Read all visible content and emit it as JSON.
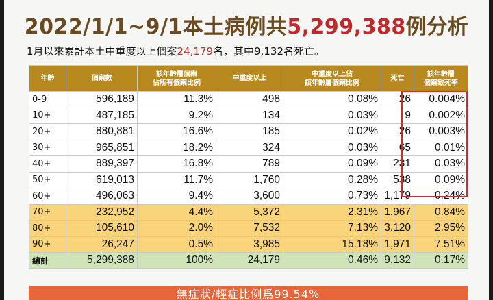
{
  "title": {
    "pre": "2022/1/1~9/1本土病例共",
    "number": "5,299,388",
    "post": "例分析"
  },
  "subtitle": {
    "pre": "1月以來累計本土中重度以上個案",
    "number": "24,179",
    "post": "名，其中9,132名死亡。"
  },
  "table": {
    "headers": {
      "age": "年齡",
      "cases": "個案數",
      "case_share": [
        "該年齡層個案",
        "佔所有個案比例"
      ],
      "severe": "中重度以上",
      "severe_share": [
        "中重度以上佔",
        "該年齡層個案比例"
      ],
      "deaths": "死亡",
      "fatality": [
        "該年齡層",
        "個案致死率"
      ]
    },
    "rows": [
      {
        "age": "0-9",
        "cases": "596,189",
        "share": "11.3%",
        "severe": "498",
        "severe_pct": "0.08%",
        "deaths": "26",
        "fatality": "0.004%"
      },
      {
        "age": "10+",
        "cases": "487,185",
        "share": "9.2%",
        "severe": "134",
        "severe_pct": "0.03%",
        "deaths": "9",
        "fatality": "0.002%"
      },
      {
        "age": "20+",
        "cases": "880,881",
        "share": "16.6%",
        "severe": "185",
        "severe_pct": "0.02%",
        "deaths": "26",
        "fatality": "0.003%"
      },
      {
        "age": "30+",
        "cases": "965,851",
        "share": "18.2%",
        "severe": "324",
        "severe_pct": "0.03%",
        "deaths": "65",
        "fatality": "0.01%"
      },
      {
        "age": "40+",
        "cases": "889,397",
        "share": "16.8%",
        "severe": "789",
        "severe_pct": "0.09%",
        "deaths": "231",
        "fatality": "0.03%"
      },
      {
        "age": "50+",
        "cases": "619,013",
        "share": "11.7%",
        "severe": "1,760",
        "severe_pct": "0.28%",
        "deaths": "538",
        "fatality": "0.09%"
      },
      {
        "age": "60+",
        "cases": "496,063",
        "share": "9.4%",
        "severe": "3,600",
        "severe_pct": "0.73%",
        "deaths": "1,179",
        "fatality": "0.24%"
      },
      {
        "age": "70+",
        "cases": "232,952",
        "share": "4.4%",
        "severe": "5,372",
        "severe_pct": "2.31%",
        "deaths": "1,967",
        "fatality": "0.84%"
      },
      {
        "age": "80+",
        "cases": "105,610",
        "share": "2.0%",
        "severe": "7,532",
        "severe_pct": "7.13%",
        "deaths": "3,120",
        "fatality": "2.95%"
      },
      {
        "age": "90+",
        "cases": "26,247",
        "share": "0.5%",
        "severe": "3,985",
        "severe_pct": "15.18%",
        "deaths": "1,971",
        "fatality": "7.51%"
      }
    ],
    "total": {
      "age": "總計",
      "cases": "5,299,388",
      "share": "100%",
      "severe": "24,179",
      "severe_pct": "0.46%",
      "deaths": "9,132",
      "fatality": "0.17%"
    }
  },
  "banner": "無症狀/輕症比例爲99.54%",
  "colors": {
    "header": "#b8891f",
    "highlight_rows": "#f9d47a",
    "total_row": "#cfe5b8",
    "red_text": "#c0282a",
    "banner": "#e7673a"
  }
}
